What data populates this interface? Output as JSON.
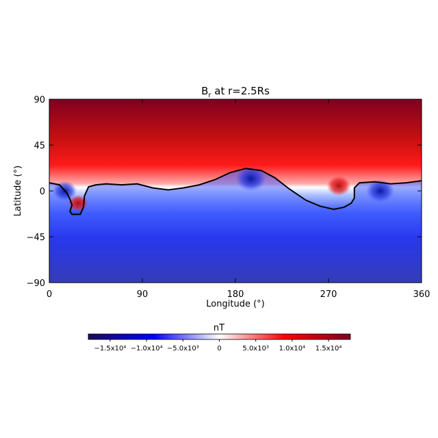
{
  "chart_data": {
    "type": "heatmap",
    "title": "B",
    "title_subscript": "r",
    "title_suffix": " at r=2.5Rs",
    "xlabel": "Longitude (°)",
    "ylabel": "Latitude (°)",
    "xlim": [
      0,
      360
    ],
    "ylim": [
      -90,
      90
    ],
    "xticks": [
      "0",
      "90",
      "180",
      "270",
      "360"
    ],
    "yticks": [
      "90",
      "45",
      "0",
      "−45",
      "−90"
    ],
    "colorbar": {
      "label": "nT",
      "range": [
        -18000,
        18000
      ],
      "colormap": [
        "#1a0a5c",
        "#0000ff",
        "#ffffff",
        "#ff0000",
        "#800020"
      ],
      "tick_labels": [
        {
          "value": -15000,
          "label": "−1.5x10⁴"
        },
        {
          "value": -10000,
          "label": "−1.0x10⁴"
        },
        {
          "value": -5000,
          "label": "−5.0x10³"
        },
        {
          "value": 0,
          "label": "0"
        },
        {
          "value": 5000,
          "label": "5.0x10³"
        },
        {
          "value": 10000,
          "label": "1.0x10⁴"
        },
        {
          "value": 15000,
          "label": "1.5x10⁴"
        }
      ]
    },
    "neutral_line": {
      "segments": [
        [
          [
            0,
            8
          ],
          [
            10,
            6
          ],
          [
            17,
            -2
          ],
          [
            20,
            -8
          ],
          [
            22,
            -14
          ],
          [
            20,
            -20
          ],
          [
            22,
            -23
          ],
          [
            30,
            -23
          ],
          [
            33,
            -16
          ],
          [
            34,
            -5
          ],
          [
            38,
            4
          ],
          [
            45,
            6
          ],
          [
            55,
            7
          ],
          [
            70,
            6
          ],
          [
            85,
            7
          ],
          [
            100,
            3
          ],
          [
            115,
            1
          ],
          [
            130,
            3
          ],
          [
            145,
            6
          ],
          [
            160,
            11
          ],
          [
            175,
            18
          ],
          [
            190,
            22
          ],
          [
            205,
            20
          ],
          [
            218,
            13
          ],
          [
            232,
            2
          ],
          [
            248,
            -9
          ],
          [
            262,
            -15
          ],
          [
            275,
            -18
          ],
          [
            285,
            -16
          ],
          [
            292,
            -12
          ],
          [
            295,
            -7
          ],
          [
            295,
            3
          ],
          [
            300,
            8
          ],
          [
            315,
            9
          ],
          [
            330,
            7
          ],
          [
            345,
            8
          ],
          [
            360,
            10
          ]
        ]
      ]
    },
    "features": [
      {
        "lon": 195,
        "lat": 12,
        "value": -15000
      },
      {
        "lon": 280,
        "lat": 5,
        "value": 12000
      },
      {
        "lon": 320,
        "lat": 0,
        "value": -14000
      },
      {
        "lon": 15,
        "lat": 0,
        "value": -12000
      },
      {
        "lon": 28,
        "lat": -12,
        "value": 10000
      }
    ]
  }
}
